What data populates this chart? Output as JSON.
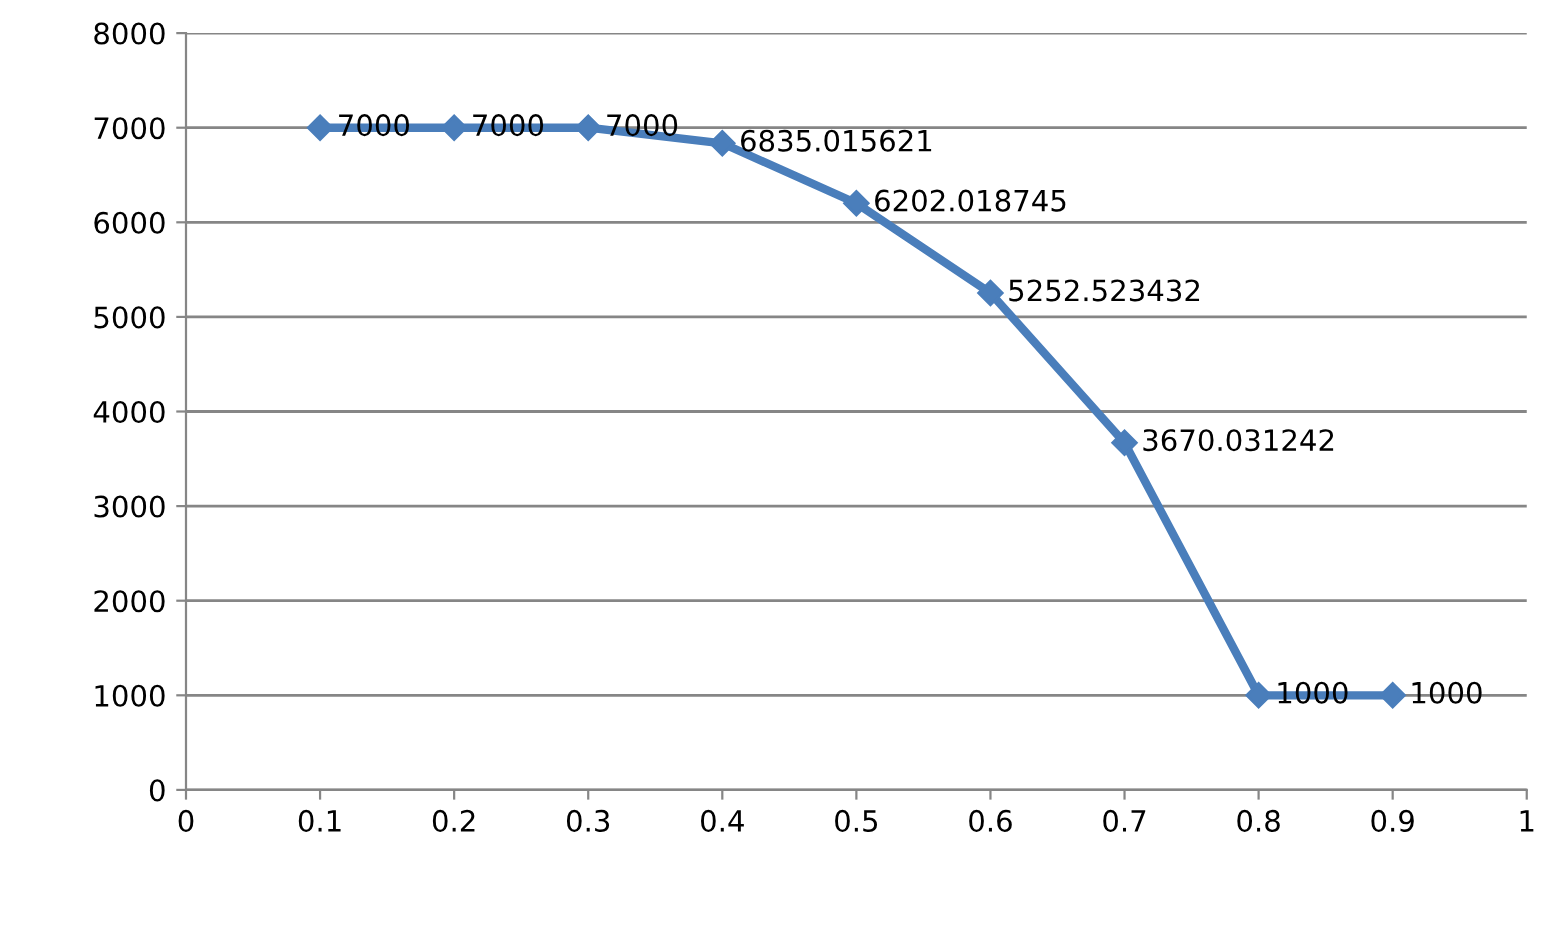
{
  "chart_data": {
    "type": "line",
    "x": [
      0.1,
      0.2,
      0.3,
      0.4,
      0.5,
      0.6,
      0.7,
      0.8,
      0.9
    ],
    "series": [
      {
        "color": "#4a7ebb",
        "values": [
          7000,
          7000,
          7000,
          6835.015621,
          6202.018745,
          5252.523432,
          3670.031242,
          1000,
          1000
        ]
      }
    ],
    "xlim": [
      0,
      1
    ],
    "xticks": [
      0,
      0.1,
      0.2,
      0.3,
      0.4,
      0.5,
      0.6,
      0.7,
      0.8,
      0.9,
      1
    ],
    "ylim": [
      0,
      8000
    ],
    "yticks": [
      0,
      1000,
      2000,
      3000,
      4000,
      5000,
      6000,
      7000,
      8000
    ],
    "grid": "y",
    "marker": "diamond",
    "line_style": "solid",
    "data_labels": true,
    "legend": false
  }
}
